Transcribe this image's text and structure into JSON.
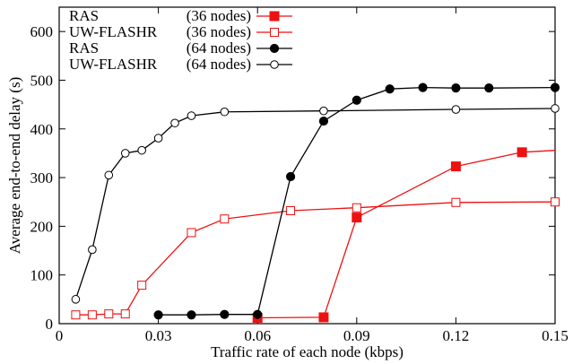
{
  "chart_data": {
    "type": "line",
    "title": "",
    "xlabel": "Traffic rate of each node (kbps)",
    "ylabel": "Average end-to-end delay (s)",
    "xlim": [
      0,
      0.15
    ],
    "ylim": [
      0,
      650
    ],
    "x_ticks": [
      0,
      0.03,
      0.06,
      0.09,
      0.12,
      0.15
    ],
    "x_tick_labels": [
      "0",
      "0.03",
      "0.06",
      "0.09",
      "0.12",
      "0.15"
    ],
    "y_ticks": [
      0,
      100,
      200,
      300,
      400,
      500,
      600
    ],
    "y_tick_labels": [
      "0",
      "100",
      "200",
      "300",
      "400",
      "500",
      "600"
    ],
    "grid": false,
    "legend_position": "top-left",
    "series": [
      {
        "name": "RAS",
        "nodes_label": "(36 nodes)",
        "color": "#ee1111",
        "marker": "square-filled",
        "points": [
          [
            0.06,
            12
          ],
          [
            0.08,
            13
          ],
          [
            0.09,
            218
          ],
          [
            0.12,
            323
          ],
          [
            0.14,
            352
          ],
          [
            0.15,
            356
          ]
        ],
        "marker_mask": [
          true,
          true,
          true,
          true,
          true,
          false
        ]
      },
      {
        "name": "UW-FLASHR",
        "nodes_label": "(36 nodes)",
        "color": "#ee1111",
        "marker": "square-open",
        "points": [
          [
            0.005,
            18
          ],
          [
            0.01,
            18
          ],
          [
            0.015,
            20
          ],
          [
            0.02,
            20
          ],
          [
            0.025,
            79
          ],
          [
            0.04,
            187
          ],
          [
            0.05,
            215
          ],
          [
            0.07,
            232
          ],
          [
            0.09,
            238
          ],
          [
            0.12,
            249
          ],
          [
            0.15,
            250
          ]
        ],
        "marker_mask": [
          true,
          true,
          true,
          true,
          true,
          true,
          true,
          true,
          true,
          true,
          true
        ]
      },
      {
        "name": "RAS",
        "nodes_label": "(64 nodes)",
        "color": "#000000",
        "marker": "circle-filled",
        "points": [
          [
            0.03,
            18
          ],
          [
            0.04,
            18
          ],
          [
            0.05,
            19
          ],
          [
            0.06,
            19
          ],
          [
            0.07,
            302
          ],
          [
            0.08,
            416
          ],
          [
            0.09,
            459
          ],
          [
            0.1,
            482
          ],
          [
            0.11,
            485
          ],
          [
            0.12,
            484
          ],
          [
            0.13,
            484
          ],
          [
            0.15,
            485
          ]
        ],
        "marker_mask": [
          true,
          true,
          true,
          true,
          true,
          true,
          true,
          true,
          true,
          true,
          true,
          true
        ]
      },
      {
        "name": "UW-FLASHR",
        "nodes_label": "(64 nodes)",
        "color": "#000000",
        "marker": "circle-open",
        "points": [
          [
            0.005,
            50
          ],
          [
            0.01,
            152
          ],
          [
            0.015,
            305
          ],
          [
            0.02,
            350
          ],
          [
            0.025,
            356
          ],
          [
            0.03,
            381
          ],
          [
            0.035,
            412
          ],
          [
            0.04,
            427
          ],
          [
            0.05,
            435
          ],
          [
            0.08,
            437
          ],
          [
            0.12,
            440
          ],
          [
            0.15,
            442
          ]
        ],
        "marker_mask": [
          true,
          true,
          true,
          true,
          true,
          true,
          true,
          true,
          true,
          true,
          true,
          true
        ]
      }
    ]
  }
}
